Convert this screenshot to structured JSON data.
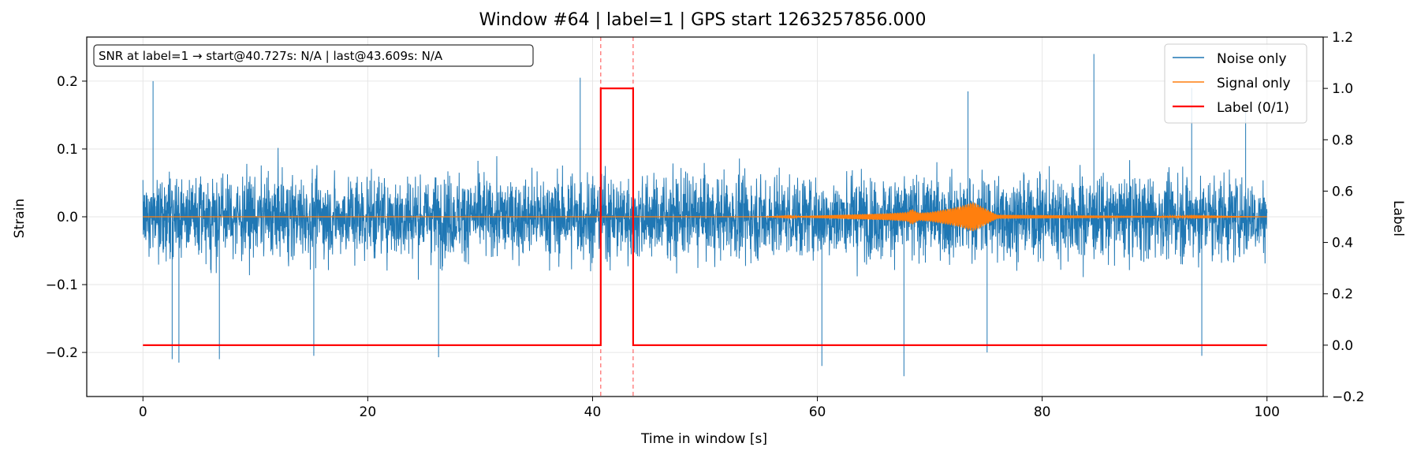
{
  "chart_data": {
    "type": "line",
    "title": "Window #64  |  label=1  |  GPS start 1263257856.000",
    "xlabel": "Time in window [s]",
    "ylabel": "Strain",
    "y2label": "Label",
    "xlim": [
      -5,
      105
    ],
    "ylim": [
      -0.265,
      0.265
    ],
    "y2lim": [
      -0.2,
      1.2
    ],
    "xticks": [
      0,
      20,
      40,
      60,
      80,
      100
    ],
    "xtick_labels": [
      "0",
      "20",
      "40",
      "60",
      "80",
      "100"
    ],
    "yticks": [
      -0.2,
      -0.1,
      0.0,
      0.1,
      0.2
    ],
    "ytick_labels": [
      "−0.2",
      "−0.1",
      "0.0",
      "0.1",
      "0.2"
    ],
    "y2ticks": [
      -0.2,
      0.0,
      0.2,
      0.4,
      0.6,
      0.8,
      1.0,
      1.2
    ],
    "y2tick_labels": [
      "−0.2",
      "0.0",
      "0.2",
      "0.4",
      "0.6",
      "0.8",
      "1.0",
      "1.2"
    ],
    "grid": true,
    "legend_position": "top-right",
    "annotation": "SNR at label=1 → start@40.727s: N/A | last@43.609s: N/A",
    "series": [
      {
        "name": "Noise only",
        "color": "#1f77b4",
        "axis": "left",
        "x_range": [
          0,
          100
        ],
        "typical_envelope": 0.1,
        "peak_envelope": 0.24,
        "sample_peaks": [
          {
            "x": 0.9,
            "y": 0.2
          },
          {
            "x": 2.6,
            "y": -0.21
          },
          {
            "x": 3.2,
            "y": -0.215
          },
          {
            "x": 6.8,
            "y": -0.21
          },
          {
            "x": 15.2,
            "y": -0.205
          },
          {
            "x": 26.3,
            "y": -0.207
          },
          {
            "x": 38.9,
            "y": 0.205
          },
          {
            "x": 60.4,
            "y": -0.22
          },
          {
            "x": 67.7,
            "y": -0.235
          },
          {
            "x": 73.4,
            "y": 0.185
          },
          {
            "x": 75.1,
            "y": -0.2
          },
          {
            "x": 84.6,
            "y": 0.24
          },
          {
            "x": 93.3,
            "y": 0.19
          },
          {
            "x": 94.2,
            "y": -0.205
          },
          {
            "x": 98.1,
            "y": 0.155
          }
        ]
      },
      {
        "name": "Signal only",
        "color": "#ff7f0e",
        "axis": "left",
        "x": [
          0,
          55,
          58,
          60,
          62,
          64,
          66,
          68,
          68.4,
          69,
          70,
          71,
          72,
          72.8,
          73.5,
          73.8,
          74.1,
          76,
          100
        ],
        "envelope": [
          0,
          0,
          0.001,
          0.002,
          0.003,
          0.004,
          0.005,
          0.007,
          0.012,
          0.006,
          0.007,
          0.01,
          0.013,
          0.016,
          0.02,
          0.022,
          0.02,
          0.003,
          0
        ]
      },
      {
        "name": "Label (0/1)",
        "color": "#ff0000",
        "axis": "right",
        "x": [
          0,
          40.727,
          40.727,
          43.609,
          43.609,
          100
        ],
        "y": [
          0,
          0,
          1,
          1,
          0,
          0
        ]
      }
    ],
    "vlines": [
      40.727,
      43.609
    ]
  }
}
